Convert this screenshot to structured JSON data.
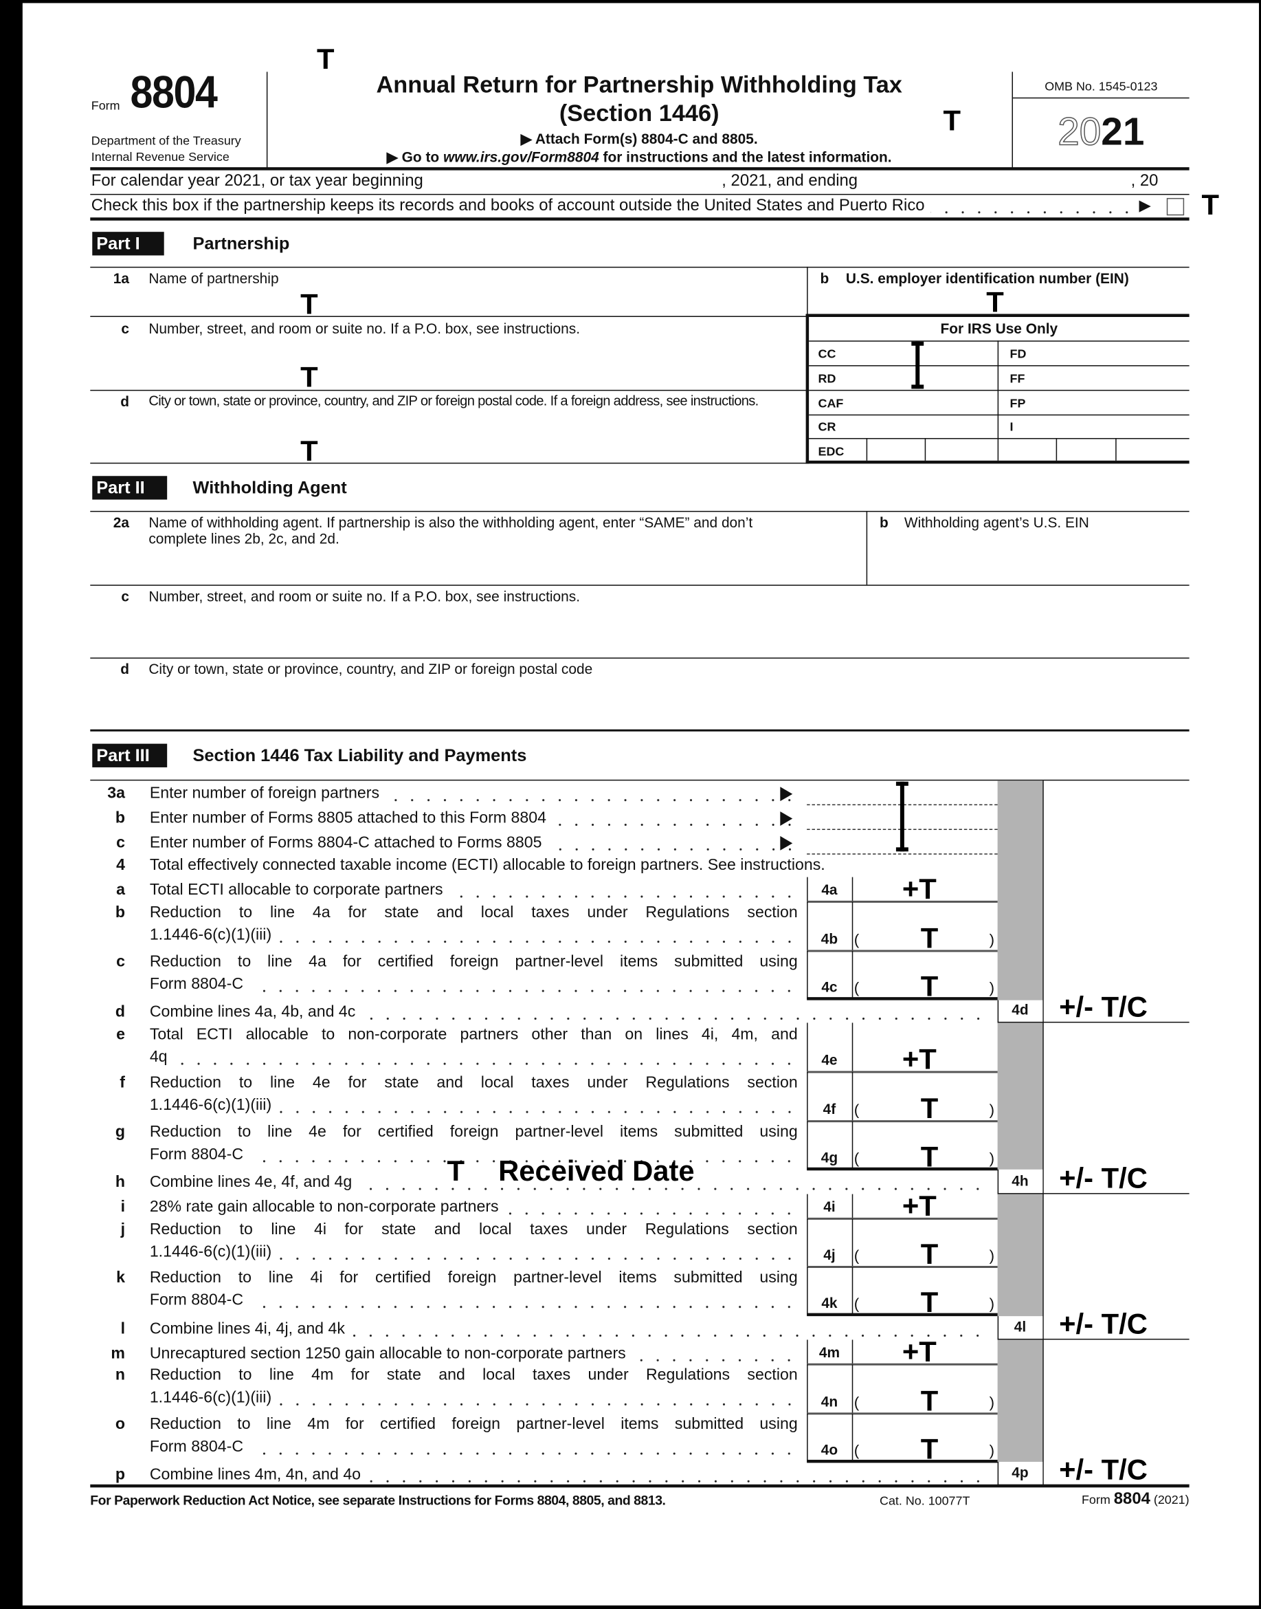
{
  "header": {
    "form_word": "Form",
    "form_number": "8804",
    "dept_line1": "Department of the Treasury",
    "dept_line2": "Internal Revenue Service",
    "title_line1": "Annual Return for Partnership Withholding Tax",
    "title_line2": "(Section 1446)",
    "attach_line": "▶ Attach Form(s) 8804-C and 8805.",
    "goto_prefix": "▶ Go to ",
    "goto_url": "www.irs.gov/Form8804",
    "goto_suffix": " for instructions and the latest information.",
    "omb": "OMB No. 1545-0123",
    "year_outline": "20",
    "year_bold": "21"
  },
  "tax_year": {
    "begin_label": "For calendar year 2021, or tax year beginning",
    "mid_label": ", 2021, and ending",
    "end_label": ", 20"
  },
  "checkbox_row": {
    "label": "Check this box if the partnership keeps its records and books of account outside the United States and Puerto Rico",
    "arrow": "▶",
    "checked": false
  },
  "part1": {
    "tag": "Part I",
    "title": "Partnership",
    "line_1a": {
      "num": "1a",
      "text": "Name of partnership"
    },
    "line_b": {
      "num": "b",
      "text": "U.S. employer identification number (EIN)"
    },
    "line_c": {
      "num": "c",
      "text": "Number, street, and room or suite no. If a P.O. box, see instructions."
    },
    "line_d": {
      "num": "d",
      "text": "City or town, state or province, country, and ZIP or foreign postal code. If a foreign address, see instructions."
    },
    "irs_use": {
      "title": "For IRS Use Only",
      "left": [
        "CC",
        "RD",
        "CAF",
        "CR",
        "EDC"
      ],
      "right": [
        "FD",
        "FF",
        "FP",
        "I"
      ]
    }
  },
  "part2": {
    "tag": "Part II",
    "title": "Withholding Agent",
    "line_2a": {
      "num": "2a",
      "text1": "Name of withholding agent. If partnership is also the withholding agent, enter “SAME” and don’t",
      "text2": "complete lines 2b, 2c, and 2d."
    },
    "line_b": {
      "num": "b",
      "text": "Withholding agent’s U.S. EIN"
    },
    "line_c": {
      "num": "c",
      "text": "Number, street, and room or suite no. If a P.O. box, see instructions."
    },
    "line_d": {
      "num": "d",
      "text": "City or town, state or province, country, and ZIP or foreign postal code"
    }
  },
  "part3": {
    "tag": "Part III",
    "title": "Section 1446 Tax Liability and Payments",
    "lines": [
      {
        "letter": "3a",
        "text": [
          "Enter number of foreign partners"
        ],
        "kind": "arrow"
      },
      {
        "letter": "b",
        "text": [
          "Enter number of Forms 8805 attached to this Form 8804"
        ],
        "kind": "arrow"
      },
      {
        "letter": "c",
        "text": [
          "Enter number of Forms 8804-C attached to Forms 8805"
        ],
        "kind": "arrow"
      },
      {
        "letter": "4",
        "text": [
          "Total effectively connected taxable income (ECTI) allocable to foreign partners. See instructions."
        ],
        "kind": "heading"
      },
      {
        "letter": "a",
        "text": [
          "Total ECTI allocable to corporate partners"
        ],
        "kind": "inner",
        "box": "4a",
        "mark": "+T"
      },
      {
        "letter": "b",
        "text": [
          "Reduction to line 4a for state and local taxes under Regulations section",
          "1.1446-6(c)(1)(iii)"
        ],
        "kind": "inner",
        "box": "4b",
        "mark": "T",
        "paren": true
      },
      {
        "letter": "c",
        "text": [
          "Reduction to line 4a for certified foreign partner-level items submitted using",
          "Form 8804-C"
        ],
        "kind": "inner",
        "box": "4c",
        "mark": "T",
        "paren": true
      },
      {
        "letter": "d",
        "text": [
          "Combine lines 4a, 4b, and 4c"
        ],
        "kind": "outer",
        "box": "4d",
        "mark": "+/- T/C"
      },
      {
        "letter": "e",
        "text": [
          "Total ECTI allocable to non-corporate partners other than on lines 4i, 4m, and",
          "4q"
        ],
        "kind": "inner",
        "box": "4e",
        "mark": "+T"
      },
      {
        "letter": "f",
        "text": [
          "Reduction to line 4e for state and local taxes under Regulations section",
          "1.1446-6(c)(1)(iii)"
        ],
        "kind": "inner",
        "box": "4f",
        "mark": "T",
        "paren": true
      },
      {
        "letter": "g",
        "text": [
          "Reduction to line 4e for certified foreign partner-level items submitted using",
          "Form 8804-C"
        ],
        "kind": "inner",
        "box": "4g",
        "mark": "T",
        "paren": true
      },
      {
        "letter": "h",
        "text": [
          "Combine lines 4e, 4f, and 4g"
        ],
        "kind": "outer",
        "box": "4h",
        "mark": "+/- T/C"
      },
      {
        "letter": "i",
        "text": [
          "28% rate gain allocable to non-corporate partners"
        ],
        "kind": "inner",
        "box": "4i",
        "mark": "+T"
      },
      {
        "letter": "j",
        "text": [
          "Reduction to line 4i for state and local taxes under Regulations section",
          "1.1446-6(c)(1)(iii)"
        ],
        "kind": "inner",
        "box": "4j",
        "mark": "T",
        "paren": true
      },
      {
        "letter": "k",
        "text": [
          "Reduction to line 4i for certified foreign partner-level items submitted using",
          "Form 8804-C"
        ],
        "kind": "inner",
        "box": "4k",
        "mark": "T",
        "paren": true
      },
      {
        "letter": "l",
        "text": [
          "Combine lines 4i, 4j, and 4k"
        ],
        "kind": "outer",
        "box": "4l",
        "mark": "+/- T/C"
      },
      {
        "letter": "m",
        "text": [
          "Unrecaptured section 1250 gain allocable to non-corporate partners"
        ],
        "kind": "inner",
        "box": "4m",
        "mark": "+T"
      },
      {
        "letter": "n",
        "text": [
          "Reduction to line 4m for state and local taxes under Regulations section",
          "1.1446-6(c)(1)(iii)"
        ],
        "kind": "inner",
        "box": "4n",
        "mark": "T",
        "paren": true
      },
      {
        "letter": "o",
        "text": [
          "Reduction to line 4m for certified foreign partner-level items submitted using",
          "Form 8804-C"
        ],
        "kind": "inner",
        "box": "4o",
        "mark": "T",
        "paren": true
      },
      {
        "letter": "p",
        "text": [
          "Combine lines 4m, 4n, and 4o"
        ],
        "kind": "outer",
        "box": "4p",
        "mark": "+/- T/C"
      }
    ],
    "paren_open": "(",
    "paren_close": ")"
  },
  "overlay": {
    "t": "T",
    "received_date": "Received Date"
  },
  "footer": {
    "notice": "For Paperwork Reduction Act Notice, see separate Instructions for Forms 8804, 8805, and 8813.",
    "cat_no": "Cat. No. 10077T",
    "form_word": "Form",
    "form_number": "8804",
    "year": "(2021)"
  },
  "colors": {
    "shade": "#b3b3b3",
    "ink": "#111111"
  }
}
